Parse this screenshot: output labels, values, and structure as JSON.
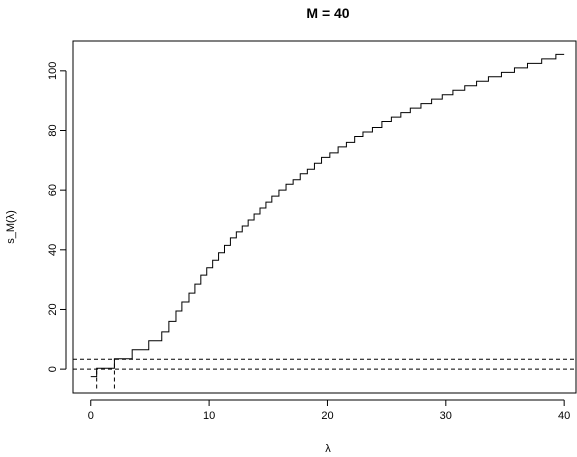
{
  "chart_data": {
    "type": "line",
    "title": "M = 40",
    "xlabel": "λ",
    "ylabel": "s_M(λ)",
    "xlim": [
      -1.5,
      41
    ],
    "ylim": [
      -8,
      110
    ],
    "x_ticks": [
      0,
      10,
      20,
      30,
      40
    ],
    "y_ticks": [
      0,
      20,
      40,
      60,
      80,
      100
    ],
    "grid": false,
    "series": [
      {
        "style": "step",
        "x": [
          0,
          0.5,
          0.5,
          2.0,
          2.0,
          3.5,
          3.5,
          4.9,
          4.9,
          6.0,
          6.0,
          6.6,
          6.6,
          7.2,
          7.2,
          7.7,
          7.7,
          8.3,
          8.3,
          8.8,
          8.8,
          9.3,
          9.3,
          9.8,
          9.8,
          10.3,
          10.3,
          10.8,
          10.8,
          11.3,
          11.3,
          11.8,
          11.8,
          12.3,
          12.3,
          12.8,
          12.8,
          13.3,
          13.3,
          13.8,
          13.8,
          14.3,
          14.3,
          14.8,
          14.8,
          15.3,
          15.3,
          15.9,
          15.9,
          16.5,
          16.5,
          17.1,
          17.1,
          17.7,
          17.7,
          18.3,
          18.3,
          18.9,
          18.9,
          19.5,
          19.5,
          20.2,
          20.2,
          20.9,
          20.9,
          21.6,
          21.6,
          22.3,
          22.3,
          23.0,
          23.0,
          23.8,
          23.8,
          24.6,
          24.6,
          25.4,
          25.4,
          26.2,
          26.2,
          27.0,
          27.0,
          27.9,
          27.9,
          28.8,
          28.8,
          29.7,
          29.7,
          30.6,
          30.6,
          31.6,
          31.6,
          32.6,
          32.6,
          33.6,
          33.6,
          34.7,
          34.7,
          35.8,
          35.8,
          36.9,
          36.9,
          38.1,
          38.1,
          39.3,
          39.3,
          40.0
        ],
        "y": [
          -2.5,
          -2.5,
          0.3,
          0.3,
          3.5,
          3.5,
          6.5,
          6.5,
          9.5,
          9.5,
          12.5,
          12.5,
          16,
          16,
          19.5,
          19.5,
          22.5,
          22.5,
          25.5,
          25.5,
          28.5,
          28.5,
          31.5,
          31.5,
          34,
          34,
          36.5,
          36.5,
          39,
          39,
          41.5,
          41.5,
          44,
          44,
          46,
          46,
          48,
          48,
          50,
          50,
          52,
          52,
          54,
          54,
          56,
          56,
          58,
          58,
          60,
          60,
          62,
          62,
          63.5,
          63.5,
          65.5,
          65.5,
          67,
          67,
          69,
          69,
          71,
          71,
          72.5,
          72.5,
          74.5,
          74.5,
          76,
          76,
          78,
          78,
          79.5,
          79.5,
          81,
          81,
          83,
          83,
          84.5,
          84.5,
          86,
          86,
          87.5,
          87.5,
          89,
          89,
          90.5,
          90.5,
          92,
          92,
          93.5,
          93.5,
          95,
          95,
          96.5,
          96.5,
          98,
          98,
          99.5,
          99.5,
          101,
          101,
          102.5,
          102.5,
          104,
          104,
          105.5,
          105.5
        ]
      }
    ],
    "reference_lines": [
      {
        "orientation": "horizontal",
        "value": 0,
        "style": "dashed"
      },
      {
        "orientation": "horizontal",
        "value": 3.3,
        "style": "dashed"
      },
      {
        "orientation": "vertical",
        "value": 0.5,
        "from": -6.5,
        "to": 0.3,
        "style": "dashed"
      },
      {
        "orientation": "vertical",
        "value": 2.0,
        "from": -6.5,
        "to": 3.5,
        "style": "dashed"
      }
    ]
  }
}
